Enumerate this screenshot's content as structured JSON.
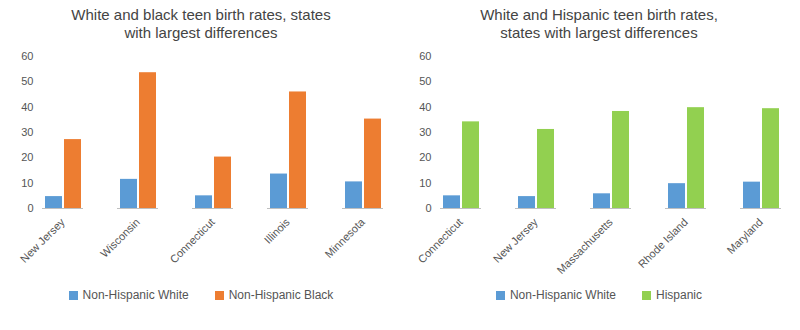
{
  "chart_data": [
    {
      "type": "bar",
      "title": "White and black teen birth rates, states with largest differences",
      "categories": [
        "New Jersey",
        "Wisconsin",
        "Connecticut",
        "Illinois",
        "Minnesota"
      ],
      "series": [
        {
          "name": "Non-Hispanic White",
          "color": "#5b9bd5",
          "values": [
            4.7,
            11.5,
            5.0,
            13.6,
            10.5
          ]
        },
        {
          "name": "Non-Hispanic Black",
          "color": "#ed7d31",
          "values": [
            27.2,
            53.6,
            20.3,
            46.0,
            35.3
          ]
        }
      ],
      "ylim": [
        0,
        60
      ],
      "yticks": [
        0,
        10,
        20,
        30,
        40,
        50,
        60
      ],
      "grid": false,
      "legend": "bottom"
    },
    {
      "type": "bar",
      "title": "White and Hispanic teen birth rates, states with largest differences",
      "categories": [
        "Connecticut",
        "New Jersey",
        "Massachusetts",
        "Rhode Island",
        "Maryland"
      ],
      "series": [
        {
          "name": "Non-Hispanic White",
          "color": "#5b9bd5",
          "values": [
            5.0,
            4.7,
            5.8,
            9.8,
            10.4
          ]
        },
        {
          "name": "Hispanic",
          "color": "#92d050",
          "values": [
            34.2,
            31.2,
            38.3,
            39.8,
            39.4
          ]
        }
      ],
      "ylim": [
        0,
        60
      ],
      "yticks": [
        0,
        10,
        20,
        30,
        40,
        50,
        60
      ],
      "grid": false,
      "legend": "bottom"
    }
  ]
}
